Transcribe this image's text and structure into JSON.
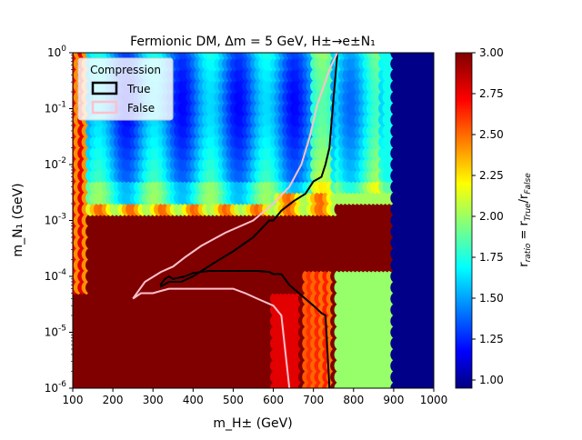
{
  "chart_data": {
    "type": "heatmap",
    "title": "Fermionic DM, Δm = 5 GeV, H±→e±N₁",
    "xlabel": "m_H± (GeV)",
    "ylabel": "m_N₁ (GeV)",
    "xlim": [
      100,
      1000
    ],
    "ylim": [
      1e-06,
      1
    ],
    "xscale": "linear",
    "yscale": "log",
    "x_ticks": [
      100,
      200,
      300,
      400,
      500,
      600,
      700,
      800,
      900,
      1000
    ],
    "y_ticks": [
      {
        "value": 1e-06,
        "exp": "-6"
      },
      {
        "value": 1e-05,
        "exp": "-5"
      },
      {
        "value": 0.0001,
        "exp": "-4"
      },
      {
        "value": 0.001,
        "exp": "-3"
      },
      {
        "value": 0.01,
        "exp": "-2"
      },
      {
        "value": 0.1,
        "exp": "-1"
      },
      {
        "value": 1,
        "exp": "0"
      }
    ],
    "colorbar": {
      "label": "r_ratio = r_True / r_False",
      "range": [
        0.95,
        3.0
      ],
      "ticks": [
        "1.00",
        "1.25",
        "1.50",
        "1.75",
        "2.00",
        "2.25",
        "2.50",
        "2.75",
        "3.00"
      ],
      "colormap": "jet"
    },
    "legend": {
      "title": "Compression",
      "position": "top-left",
      "entries": [
        {
          "label": "True",
          "color": "#000000"
        },
        {
          "label": "False",
          "color": "#ffc0cb"
        }
      ]
    },
    "contours": [
      {
        "name": "True",
        "color": "#000000",
        "points": [
          [
            318,
            7e-05
          ],
          [
            330,
            9e-05
          ],
          [
            340,
            0.0001
          ],
          [
            350,
            9e-05
          ],
          [
            380,
            0.0001
          ],
          [
            400,
            0.000115
          ],
          [
            440,
            0.000125
          ],
          [
            500,
            0.000125
          ],
          [
            560,
            0.000125
          ],
          [
            590,
            0.00012
          ],
          [
            600,
            0.00011
          ],
          [
            620,
            0.00011
          ],
          [
            640,
            7e-05
          ],
          [
            700,
            3e-05
          ],
          [
            720,
            2.2e-05
          ],
          [
            730,
            2e-05
          ],
          [
            740,
            1e-06
          ]
        ],
        "branch": [
          [
            318,
            6.5e-05
          ],
          [
            340,
            8e-05
          ],
          [
            370,
            8e-05
          ],
          [
            400,
            0.0001
          ],
          [
            450,
            0.00017
          ],
          [
            500,
            0.00028
          ],
          [
            550,
            0.0005
          ],
          [
            590,
            0.001
          ],
          [
            600,
            0.001
          ],
          [
            620,
            0.0015
          ],
          [
            650,
            0.0022
          ],
          [
            680,
            0.003
          ],
          [
            700,
            0.005
          ],
          [
            720,
            0.006
          ],
          [
            730,
            0.01
          ],
          [
            740,
            0.02
          ],
          [
            750,
            0.15
          ],
          [
            760,
            1
          ]
        ]
      },
      {
        "name": "False",
        "color": "#ffc0cb",
        "points": [
          [
            250,
            4e-05
          ],
          [
            270,
            5e-05
          ],
          [
            300,
            5e-05
          ],
          [
            320,
            5.5e-05
          ],
          [
            340,
            6e-05
          ],
          [
            400,
            6e-05
          ],
          [
            460,
            6e-05
          ],
          [
            500,
            6e-05
          ],
          [
            530,
            5e-05
          ],
          [
            560,
            4e-05
          ],
          [
            600,
            3e-05
          ],
          [
            620,
            2e-05
          ],
          [
            640,
            1e-06
          ]
        ],
        "branch": [
          [
            250,
            4e-05
          ],
          [
            280,
            8e-05
          ],
          [
            320,
            0.00012
          ],
          [
            350,
            0.00015
          ],
          [
            380,
            0.00022
          ],
          [
            420,
            0.00035
          ],
          [
            480,
            0.0006
          ],
          [
            550,
            0.001
          ],
          [
            600,
            0.002
          ],
          [
            640,
            0.004
          ],
          [
            670,
            0.01
          ],
          [
            690,
            0.03
          ],
          [
            710,
            0.12
          ],
          [
            740,
            0.5
          ],
          [
            760,
            1
          ]
        ]
      }
    ]
  }
}
